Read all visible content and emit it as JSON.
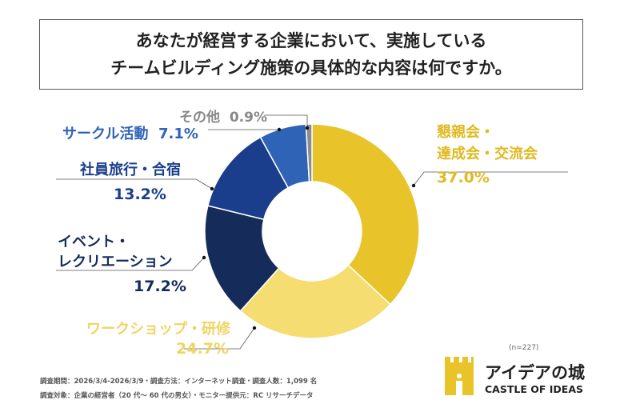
{
  "title": {
    "line1": "あなたが経営する企業において、実施している",
    "line2": "チームビルディング施策の具体的な内容は何ですか。"
  },
  "chart_data": {
    "type": "pie",
    "donut": true,
    "categories": [
      "懇親会・達成会・交流会",
      "ワークショップ・研修",
      "イベント・レクリエーション",
      "社員旅行・合宿",
      "サークル活動",
      "その他"
    ],
    "values": [
      37.0,
      24.7,
      17.2,
      13.2,
      7.1,
      0.9
    ],
    "colors": [
      "#E8C42A",
      "#F5DD72",
      "#152B5A",
      "#1A3E8C",
      "#2F63B6",
      "#8C8C8C"
    ],
    "labels": [
      {
        "lines": [
          "懇親会・",
          "達成会・交流会"
        ],
        "value": "37.0%"
      },
      {
        "lines": [
          "ワークショップ・研修"
        ],
        "value": "24.7%"
      },
      {
        "lines": [
          "イベント・",
          "レクリエーション"
        ],
        "value": "17.2%"
      },
      {
        "lines": [
          "社員旅行・合宿"
        ],
        "value": "13.2%"
      },
      {
        "lines": [
          "サークル活動"
        ],
        "value": "7.1%"
      },
      {
        "lines": [
          "その他"
        ],
        "value": "0.9%"
      }
    ],
    "sample_size": "(n=227)"
  },
  "notes": {
    "line1": "調査期間：2026/3/4-2026/3/9・調査方法：インターネット調査・調査人数：1,099 名",
    "line2": "調査対象：企業の経営者（20 代～ 60 代の男女）・モニター提供元：RC リサーチデータ"
  },
  "logo": {
    "jp": "アイデアの城",
    "en": "CASTLE OF IDEAS",
    "color": "#E8C42A"
  }
}
